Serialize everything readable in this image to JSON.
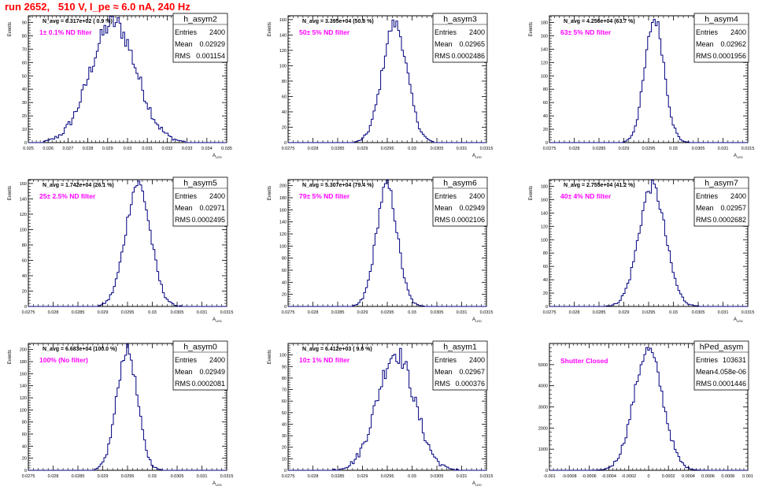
{
  "page": {
    "title": "run 2652,   510 V, I_pe ≈ 6.0 nA, 240 Hz",
    "title_color": "#ff0000",
    "line_color": "#000080",
    "annotation_color": "#ff00ff"
  },
  "chart_data": [
    {
      "type": "histogram",
      "name": "h_asym2",
      "ylabel": "Events",
      "xlabel": "A_LED",
      "xlim": [
        0.025,
        0.035
      ],
      "xticks": [
        "0.025",
        "0.026",
        "0.027",
        "0.028",
        "0.029",
        "0.03",
        "0.031",
        "0.032",
        "0.033",
        "0.034",
        "0.035"
      ],
      "ylim": [
        0,
        95
      ],
      "yticks": [
        0,
        10,
        20,
        30,
        40,
        50,
        60,
        70,
        80,
        90
      ],
      "stats": {
        "Entries": "2400",
        "Mean": "0.02929",
        "RMS": "0.001154"
      },
      "n_avg": "N_avg = 6.317e+02 ( 0.9 %)",
      "filter": "1± 0.1% ND filter",
      "mean": 0.02929,
      "rms": 0.001154,
      "peak": 90
    },
    {
      "type": "histogram",
      "name": "h_asym3",
      "ylabel": "Events",
      "xlabel": "A_LED",
      "xlim": [
        0.0275,
        0.0315
      ],
      "xticks": [
        "0.0275",
        "0.028",
        "0.0285",
        "0.029",
        "0.0295",
        "0.03",
        "0.0305",
        "0.031",
        "0.0315"
      ],
      "ylim": [
        0,
        165
      ],
      "yticks": [
        0,
        20,
        40,
        60,
        80,
        100,
        120,
        140,
        160
      ],
      "stats": {
        "Entries": "2400",
        "Mean": "0.02965",
        "RMS": "0.0002486"
      },
      "n_avg": "N_avg = 3.395e+04 (50.8 %)",
      "filter": "50± 5% ND filter",
      "mean": 0.02965,
      "rms": 0.0002486,
      "peak": 155
    },
    {
      "type": "histogram",
      "name": "h_asym4",
      "ylabel": "Events",
      "xlabel": "A_LED",
      "xlim": [
        0.0275,
        0.0315
      ],
      "xticks": [
        "0.0275",
        "0.028",
        "0.0285",
        "0.029",
        "0.0295",
        "0.03",
        "0.0305",
        "0.031",
        "0.0315"
      ],
      "ylim": [
        0,
        190
      ],
      "yticks": [
        0,
        20,
        40,
        60,
        80,
        100,
        120,
        140,
        160,
        180
      ],
      "stats": {
        "Entries": "2400",
        "Mean": "0.02962",
        "RMS": "0.0001956"
      },
      "n_avg": "N_avg = 4.256e+04 (63.7 %)",
      "filter": "63± 5% ND filter",
      "mean": 0.02962,
      "rms": 0.0001956,
      "peak": 185
    },
    {
      "type": "histogram",
      "name": "h_asym5",
      "ylabel": "Events",
      "xlabel": "A_LED",
      "xlim": [
        0.0275,
        0.0315
      ],
      "xticks": [
        "0.0275",
        "0.028",
        "0.0285",
        "0.029",
        "0.0295",
        "0.03",
        "0.0305",
        "0.031",
        "0.0315"
      ],
      "ylim": [
        0,
        165
      ],
      "yticks": [
        0,
        20,
        40,
        60,
        80,
        100,
        120,
        140,
        160
      ],
      "stats": {
        "Entries": "2400",
        "Mean": "0.02971",
        "RMS": "0.0002495"
      },
      "n_avg": "N_avg = 1.742e+04 (26.1 %)",
      "filter": "25± 2.5% ND filter",
      "mean": 0.02971,
      "rms": 0.0002495,
      "peak": 160
    },
    {
      "type": "histogram",
      "name": "h_asym6",
      "ylabel": "Events",
      "xlabel": "A_LED",
      "xlim": [
        0.0275,
        0.0315
      ],
      "xticks": [
        "0.0275",
        "0.028",
        "0.0285",
        "0.029",
        "0.0295",
        "0.03",
        "0.0305",
        "0.031",
        "0.0315"
      ],
      "ylim": [
        0,
        210
      ],
      "yticks": [
        0,
        20,
        40,
        60,
        80,
        100,
        120,
        140,
        160,
        180,
        200
      ],
      "stats": {
        "Entries": "2400",
        "Mean": "0.02949",
        "RMS": "0.0002106"
      },
      "n_avg": "N_avg = 5.307e+04 (79.4 %)",
      "filter": "79± 5% ND filter",
      "mean": 0.02949,
      "rms": 0.0002106,
      "peak": 200
    },
    {
      "type": "histogram",
      "name": "h_asym7",
      "ylabel": "Events",
      "xlabel": "A_LED",
      "xlim": [
        0.0275,
        0.0315
      ],
      "xticks": [
        "0.0275",
        "0.028",
        "0.0285",
        "0.029",
        "0.0295",
        "0.03",
        "0.0305",
        "0.031",
        "0.0315"
      ],
      "ylim": [
        0,
        190
      ],
      "yticks": [
        0,
        20,
        40,
        60,
        80,
        100,
        120,
        140,
        160,
        180
      ],
      "stats": {
        "Entries": "2400",
        "Mean": "0.02957",
        "RMS": "0.0002682"
      },
      "n_avg": "N_avg = 2.755e+04 (41.2 %)",
      "filter": "40± 4% ND filter",
      "mean": 0.02957,
      "rms": 0.0002682,
      "peak": 180
    },
    {
      "type": "histogram",
      "name": "h_asym0",
      "ylabel": "Events",
      "xlabel": "A_LED",
      "xlim": [
        0.0275,
        0.0315
      ],
      "xticks": [
        "0.0275",
        "0.028",
        "0.0285",
        "0.029",
        "0.0295",
        "0.03",
        "0.0305",
        "0.031",
        "0.0315"
      ],
      "ylim": [
        0,
        210
      ],
      "yticks": [
        0,
        20,
        40,
        60,
        80,
        100,
        120,
        140,
        160,
        180,
        200
      ],
      "stats": {
        "Entries": "2400",
        "Mean": "0.02949",
        "RMS": "0.0002081"
      },
      "n_avg": "N_avg = 6.683e+04 (100.0 %)",
      "filter": "100% (No filter)",
      "mean": 0.02949,
      "rms": 0.0002081,
      "peak": 200
    },
    {
      "type": "histogram",
      "name": "h_asym1",
      "ylabel": "Events",
      "xlabel": "A_LED",
      "xlim": [
        0.0275,
        0.0315
      ],
      "xticks": [
        "0.0275",
        "0.028",
        "0.0285",
        "0.029",
        "0.0295",
        "0.03",
        "0.0305",
        "0.031",
        "0.0315"
      ],
      "ylim": [
        0,
        110
      ],
      "yticks": [
        0,
        10,
        20,
        30,
        40,
        50,
        60,
        70,
        80,
        90,
        100
      ],
      "stats": {
        "Entries": "2400",
        "Mean": "0.02967",
        "RMS": "0.000376"
      },
      "n_avg": "N_avg = 6.412e+03 ( 9.6 %)",
      "filter": "10± 1% ND filter",
      "mean": 0.02967,
      "rms": 0.000376,
      "peak": 102
    },
    {
      "type": "histogram",
      "name": "hPed_asym",
      "ylabel": "",
      "xlabel": "",
      "xlim": [
        -0.001,
        0.001
      ],
      "xticks": [
        "-0.001",
        "-0.0008",
        "-0.0006",
        "-0.0004",
        "-0.0002",
        "0",
        "0.0002",
        "0.0004",
        "0.0006",
        "0.0008",
        "0.001"
      ],
      "ylim": [
        0,
        6000
      ],
      "yticks": [
        0,
        1000,
        2000,
        3000,
        4000,
        5000
      ],
      "stats": {
        "Entries": "103631",
        "Mean": "-4.058e-06",
        "RMS": "0.0001446"
      },
      "n_avg": "",
      "filter": "Shutter Closed",
      "mean": -4.058e-06,
      "rms": 0.0001446,
      "peak": 5700
    }
  ]
}
